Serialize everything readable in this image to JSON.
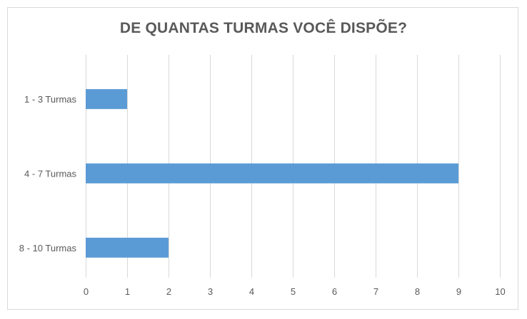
{
  "chart_data": {
    "type": "bar",
    "orientation": "horizontal",
    "title": "DE QUANTAS TURMAS VOCÊ DISPÕE?",
    "categories": [
      "1 - 3 Turmas",
      "4 - 7 Turmas",
      "8 - 10 Turmas"
    ],
    "values": [
      1,
      9,
      2
    ],
    "xlim": [
      0,
      10
    ],
    "xticks": [
      "0",
      "1",
      "2",
      "3",
      "4",
      "5",
      "6",
      "7",
      "8",
      "9",
      "10"
    ],
    "xlabel": "",
    "ylabel": "",
    "grid": "vertical",
    "legend": "none",
    "bar_color": "#5b9bd5"
  }
}
